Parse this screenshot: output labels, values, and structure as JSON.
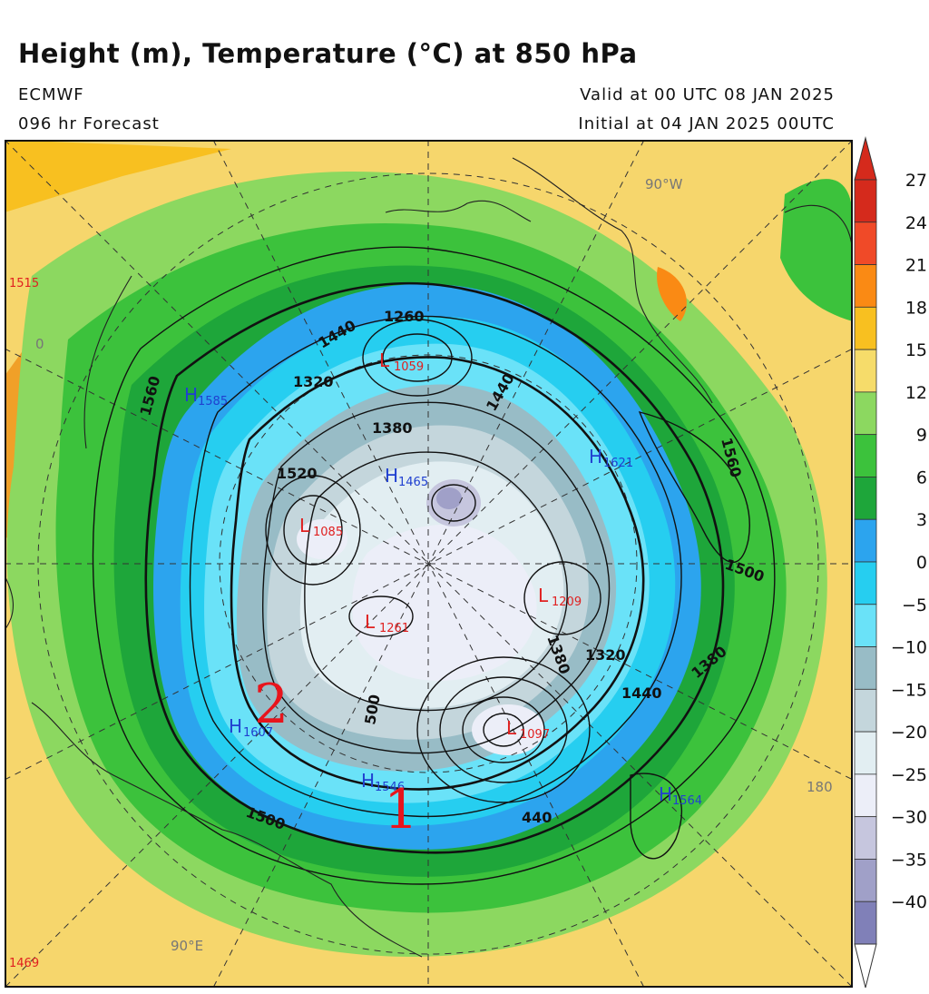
{
  "header": {
    "title": "Height (m), Temperature (°C) at 850 hPa",
    "model": "ECMWF",
    "forecast": "096 hr Forecast",
    "valid": "Valid at 00 UTC 08 JAN 2025",
    "initial": "Initial at 04 JAN 2025 00UTC"
  },
  "map": {
    "longitude_labels": {
      "w90": "90°W",
      "e90": "90°E",
      "d180": "180",
      "d0": "0"
    },
    "pressure_centers": [
      {
        "type": "L",
        "value": "1059"
      },
      {
        "type": "L",
        "value": "1085"
      },
      {
        "type": "L",
        "value": "1261"
      },
      {
        "type": "L",
        "value": "1209"
      },
      {
        "type": "L",
        "value": "1097"
      },
      {
        "type": "H",
        "value": "1585"
      },
      {
        "type": "H",
        "value": "1465"
      },
      {
        "type": "H",
        "value": "1621"
      },
      {
        "type": "H",
        "value": "1607"
      },
      {
        "type": "H",
        "value": "1546"
      },
      {
        "type": "H",
        "value": "1564"
      }
    ],
    "edge_values": {
      "top_left": "1515",
      "bottom_left": "1469"
    },
    "contour_labels": [
      "1560",
      "1440",
      "1260",
      "1320",
      "1380",
      "1440",
      "1520",
      "1560",
      "1500",
      "1380",
      "1320",
      "1380",
      "1440",
      "500",
      "1500",
      "440"
    ],
    "annotations": [
      "2",
      "1"
    ],
    "colors": {
      "red_label": "#e02020",
      "blue_label": "#2040d0",
      "annotation": "#e8141c"
    }
  },
  "colorbar": {
    "labels": [
      "27",
      "24",
      "21",
      "18",
      "15",
      "12",
      "9",
      "6",
      "3",
      "0",
      "−5",
      "−10",
      "−15",
      "−20",
      "−25",
      "−30",
      "−35",
      "−40"
    ],
    "colors": [
      "#d52a1c",
      "#f04a28",
      "#fa8a14",
      "#f8c020",
      "#f6dc6a",
      "#8cd860",
      "#3cc23c",
      "#1ea63a",
      "#2ca4ee",
      "#26cef0",
      "#6ae2f8",
      "#98bcc6",
      "#c4d6dc",
      "#e2eef2",
      "#eceef8",
      "#c6c6de",
      "#a0a0c8",
      "#8080b8"
    ]
  }
}
